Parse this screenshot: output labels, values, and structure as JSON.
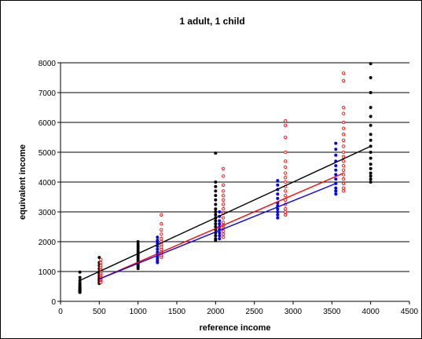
{
  "chart_data": {
    "type": "scatter",
    "title": "1 adult, 1 child",
    "xlabel": "reference income",
    "ylabel": "equivalent income",
    "xlim": [
      0,
      4500
    ],
    "ylim": [
      0,
      8000
    ],
    "xticks": [
      0,
      500,
      1000,
      1500,
      2000,
      2500,
      3000,
      3500,
      4000,
      4500
    ],
    "yticks": [
      0,
      1000,
      2000,
      3000,
      4000,
      5000,
      6000,
      7000,
      8000
    ],
    "grid": "horizontal",
    "legend": "none",
    "series": [
      {
        "color": "#000000",
        "marker": "filled-dot",
        "points": [
          [
            250,
            980
          ],
          [
            250,
            800
          ],
          [
            250,
            700
          ],
          [
            250,
            620
          ],
          [
            250,
            560
          ],
          [
            250,
            510
          ],
          [
            250,
            470
          ],
          [
            250,
            440
          ],
          [
            250,
            410
          ],
          [
            250,
            380
          ],
          [
            250,
            360
          ],
          [
            250,
            340
          ],
          [
            250,
            320
          ],
          [
            250,
            300
          ],
          [
            500,
            1470
          ],
          [
            500,
            1300
          ],
          [
            500,
            1200
          ],
          [
            500,
            1100
          ],
          [
            500,
            1000
          ],
          [
            500,
            950
          ],
          [
            500,
            900
          ],
          [
            500,
            850
          ],
          [
            500,
            800
          ],
          [
            500,
            760
          ],
          [
            500,
            720
          ],
          [
            500,
            690
          ],
          [
            500,
            650
          ],
          [
            500,
            620
          ],
          [
            500,
            600
          ],
          [
            1000,
            2000
          ],
          [
            1000,
            1920
          ],
          [
            1000,
            1850
          ],
          [
            1000,
            1780
          ],
          [
            1000,
            1700
          ],
          [
            1000,
            1640
          ],
          [
            1000,
            1580
          ],
          [
            1000,
            1520
          ],
          [
            1000,
            1460
          ],
          [
            1000,
            1400
          ],
          [
            1000,
            1350
          ],
          [
            1000,
            1300
          ],
          [
            1000,
            1250
          ],
          [
            1000,
            1200
          ],
          [
            1000,
            1150
          ],
          [
            1000,
            1100
          ],
          [
            2000,
            4970
          ],
          [
            2000,
            4000
          ],
          [
            2000,
            3850
          ],
          [
            2000,
            3700
          ],
          [
            2000,
            3550
          ],
          [
            2000,
            3400
          ],
          [
            2000,
            3250
          ],
          [
            2000,
            3100
          ],
          [
            2000,
            3000
          ],
          [
            2000,
            2900
          ],
          [
            2000,
            2800
          ],
          [
            2000,
            2700
          ],
          [
            2000,
            2600
          ],
          [
            2000,
            2500
          ],
          [
            2000,
            2400
          ],
          [
            2000,
            2300
          ],
          [
            2000,
            2200
          ],
          [
            2000,
            2100
          ],
          [
            2000,
            2050
          ],
          [
            4000,
            7970
          ],
          [
            4000,
            7500
          ],
          [
            4000,
            7000
          ],
          [
            4000,
            6500
          ],
          [
            4000,
            6200
          ],
          [
            4000,
            5900
          ],
          [
            4000,
            5600
          ],
          [
            4000,
            5400
          ],
          [
            4000,
            5200
          ],
          [
            4000,
            5000
          ],
          [
            4000,
            4800
          ],
          [
            4000,
            4600
          ],
          [
            4000,
            4450
          ],
          [
            4000,
            4300
          ],
          [
            4000,
            4200
          ],
          [
            4000,
            4100
          ],
          [
            4000,
            4000
          ]
        ]
      },
      {
        "color": "#0000ff",
        "marker": "filled-dot",
        "points": [
          [
            1250,
            2150
          ],
          [
            1250,
            2050
          ],
          [
            1250,
            1950
          ],
          [
            1250,
            1850
          ],
          [
            1250,
            1750
          ],
          [
            1250,
            1650
          ],
          [
            1250,
            1580
          ],
          [
            1250,
            1500
          ],
          [
            1250,
            1430
          ],
          [
            1250,
            1370
          ],
          [
            1250,
            1300
          ],
          [
            2050,
            3000
          ],
          [
            2050,
            2850
          ],
          [
            2050,
            2700
          ],
          [
            2050,
            2600
          ],
          [
            2050,
            2500
          ],
          [
            2050,
            2400
          ],
          [
            2050,
            2300
          ],
          [
            2050,
            2200
          ],
          [
            2050,
            2100
          ],
          [
            2800,
            4050
          ],
          [
            2800,
            3900
          ],
          [
            2800,
            3750
          ],
          [
            2800,
            3600
          ],
          [
            2800,
            3450
          ],
          [
            2800,
            3300
          ],
          [
            2800,
            3200
          ],
          [
            2800,
            3100
          ],
          [
            2800,
            3000
          ],
          [
            2800,
            2900
          ],
          [
            2800,
            2800
          ],
          [
            3550,
            5300
          ],
          [
            3550,
            5100
          ],
          [
            3550,
            4900
          ],
          [
            3550,
            4700
          ],
          [
            3550,
            4550
          ],
          [
            3550,
            4400
          ],
          [
            3550,
            4250
          ],
          [
            3550,
            4100
          ],
          [
            3550,
            3950
          ],
          [
            3550,
            3800
          ],
          [
            3550,
            3700
          ],
          [
            3550,
            3600
          ]
        ]
      },
      {
        "color": "#ff0000",
        "marker": "open-dot",
        "points": [
          [
            520,
            1400
          ],
          [
            520,
            1300
          ],
          [
            520,
            1200
          ],
          [
            520,
            1120
          ],
          [
            520,
            1050
          ],
          [
            520,
            980
          ],
          [
            520,
            920
          ],
          [
            520,
            870
          ],
          [
            520,
            820
          ],
          [
            520,
            780
          ],
          [
            520,
            740
          ],
          [
            520,
            700
          ],
          [
            520,
            660
          ],
          [
            520,
            630
          ],
          [
            1300,
            2900
          ],
          [
            1300,
            2600
          ],
          [
            1300,
            2400
          ],
          [
            1300,
            2250
          ],
          [
            1300,
            2100
          ],
          [
            1300,
            2000
          ],
          [
            1300,
            1900
          ],
          [
            1300,
            1820
          ],
          [
            1300,
            1740
          ],
          [
            1300,
            1660
          ],
          [
            1300,
            1600
          ],
          [
            1300,
            1540
          ],
          [
            1300,
            1480
          ],
          [
            2100,
            4450
          ],
          [
            2100,
            4200
          ],
          [
            2100,
            3900
          ],
          [
            2100,
            3700
          ],
          [
            2100,
            3550
          ],
          [
            2100,
            3400
          ],
          [
            2100,
            3250
          ],
          [
            2100,
            3100
          ],
          [
            2100,
            2950
          ],
          [
            2100,
            2800
          ],
          [
            2100,
            2650
          ],
          [
            2100,
            2550
          ],
          [
            2100,
            2450
          ],
          [
            2100,
            2350
          ],
          [
            2100,
            2250
          ],
          [
            2100,
            2150
          ],
          [
            2900,
            6050
          ],
          [
            2900,
            5900
          ],
          [
            2900,
            5500
          ],
          [
            2900,
            5000
          ],
          [
            2900,
            4700
          ],
          [
            2900,
            4500
          ],
          [
            2900,
            4300
          ],
          [
            2900,
            4150
          ],
          [
            2900,
            4000
          ],
          [
            2900,
            3850
          ],
          [
            2900,
            3700
          ],
          [
            2900,
            3550
          ],
          [
            2900,
            3400
          ],
          [
            2900,
            3250
          ],
          [
            2900,
            3100
          ],
          [
            2900,
            3000
          ],
          [
            2900,
            2900
          ],
          [
            3650,
            7650
          ],
          [
            3650,
            7400
          ],
          [
            3650,
            6500
          ],
          [
            3650,
            6300
          ],
          [
            3650,
            6000
          ],
          [
            3650,
            5800
          ],
          [
            3650,
            5600
          ],
          [
            3650,
            5400
          ],
          [
            3650,
            5200
          ],
          [
            3650,
            5000
          ],
          [
            3650,
            4850
          ],
          [
            3650,
            4700
          ],
          [
            3650,
            4550
          ],
          [
            3650,
            4400
          ],
          [
            3650,
            4250
          ],
          [
            3650,
            4100
          ],
          [
            3650,
            3950
          ],
          [
            3650,
            3800
          ],
          [
            3650,
            3700
          ]
        ]
      }
    ],
    "trend_lines": [
      {
        "color": "#000000",
        "from": [
          250,
          700
        ],
        "to": [
          4000,
          5200
        ]
      },
      {
        "color": "#ff0000",
        "from": [
          500,
          750
        ],
        "to": [
          3650,
          4300
        ]
      },
      {
        "color": "#0000ff",
        "from": [
          500,
          750
        ],
        "to": [
          3550,
          3950
        ]
      }
    ]
  }
}
